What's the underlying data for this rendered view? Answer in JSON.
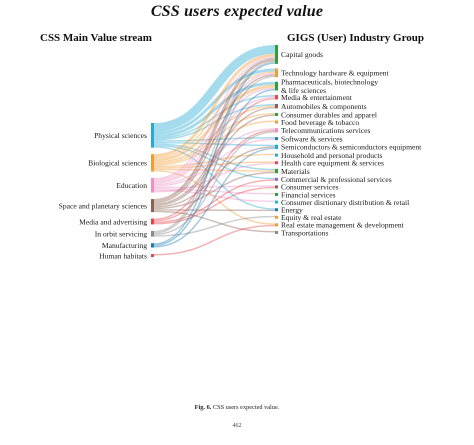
{
  "title": "CSS users expected value",
  "left_header": "CSS Main Value stream",
  "right_header": "GIGS (User) Industry Group",
  "caption": {
    "label": "Fig. 6.",
    "text": "CSS users expected value."
  },
  "page_number": "462",
  "chart_data": {
    "type": "sankey",
    "title": "CSS users expected value",
    "sources": [
      {
        "name": "Physical sciences",
        "color": "#27a9d3"
      },
      {
        "name": "Biological sciences",
        "color": "#f39c34"
      },
      {
        "name": "Education",
        "color": "#ef8fc4"
      },
      {
        "name": "Space and planetary sciences",
        "color": "#8c6253"
      },
      {
        "name": "Media and advertising",
        "color": "#e8424a"
      },
      {
        "name": "In orbit servicing",
        "color": "#8b8b8b"
      },
      {
        "name": "Manufacturing",
        "color": "#1f7bb4"
      },
      {
        "name": "Human habitats",
        "color": "#e8424a"
      }
    ],
    "targets": [
      {
        "name": "Capital goods",
        "color": "#2e9f3b",
        "label_lines": [
          "Capital goods"
        ]
      },
      {
        "name": "Technology hardware & equipment",
        "color": "#f39c34",
        "label_lines": [
          "Technology hardware & equipment"
        ]
      },
      {
        "name": "Pharmaceuticals, biotechnology & life sciences",
        "color": "#2e9f3b",
        "label_lines": [
          "Pharmaceuticals, biotechnology",
          "& life sciences"
        ]
      },
      {
        "name": "Media & entertainment",
        "color": "#e8424a",
        "label_lines": [
          "Media & entertainment"
        ]
      },
      {
        "name": "Automobiles & components",
        "color": "#8c6253",
        "label_lines": [
          "Automobiles & components"
        ]
      },
      {
        "name": "Consumer durables and apparel",
        "color": "#2e9f3b",
        "label_lines": [
          "Consumer durables and apparel"
        ]
      },
      {
        "name": "Food beverage & tobacco",
        "color": "#f39c34",
        "label_lines": [
          "Food beverage & tobacco"
        ]
      },
      {
        "name": "Telecommunications services",
        "color": "#ef8fc4",
        "label_lines": [
          "Telecommunications services"
        ]
      },
      {
        "name": "Software & services",
        "color": "#1f7bb4",
        "label_lines": [
          "Software & services"
        ]
      },
      {
        "name": "Semiconductors & semiconductors equipment",
        "color": "#27a9d3",
        "label_lines": [
          "Semiconductors & semiconductors equipment"
        ]
      },
      {
        "name": "Household and personal products",
        "color": "#27a9d3",
        "label_lines": [
          "Household and personal products"
        ]
      },
      {
        "name": "Health care equipment & services",
        "color": "#e8424a",
        "label_lines": [
          "Health care equipment & services"
        ]
      },
      {
        "name": "Materials",
        "color": "#2e9f3b",
        "label_lines": [
          "Materials"
        ]
      },
      {
        "name": "Commercial & professional services",
        "color": "#9467bd",
        "label_lines": [
          "Commercial & professional services"
        ]
      },
      {
        "name": "Consumer services",
        "color": "#8c6253",
        "label_lines": [
          "Consumer services"
        ]
      },
      {
        "name": "Financial services",
        "color": "#2e9f3b",
        "label_lines": [
          "Financial services"
        ]
      },
      {
        "name": "Consumer disrtionary distribution & retail",
        "color": "#17becf",
        "label_lines": [
          "Consumer disrtionary distribution & retail"
        ]
      },
      {
        "name": "Energy",
        "color": "#1f7bb4",
        "label_lines": [
          "Energy"
        ]
      },
      {
        "name": "Equity & real estate",
        "color": "#f39c34",
        "label_lines": [
          "Equity & real estate"
        ]
      },
      {
        "name": "Real estate management & development",
        "color": "#f39c34",
        "label_lines": [
          "Real estate management & development"
        ]
      },
      {
        "name": "Transportations",
        "color": "#8b8b8b",
        "label_lines": [
          "Transportations"
        ]
      }
    ],
    "links": [
      [
        "Physical sciences",
        "Capital goods",
        6
      ],
      [
        "Physical sciences",
        "Technology hardware & equipment",
        2
      ],
      [
        "Physical sciences",
        "Pharmaceuticals, biotechnology & life sciences",
        2
      ],
      [
        "Physical sciences",
        "Media & entertainment",
        1
      ],
      [
        "Physical sciences",
        "Automobiles & components",
        1
      ],
      [
        "Physical sciences",
        "Software & services",
        1
      ],
      [
        "Physical sciences",
        "Semiconductors & semiconductors equipment",
        1
      ],
      [
        "Physical sciences",
        "Materials",
        1
      ],
      [
        "Physical sciences",
        "Commercial & professional services",
        1
      ],
      [
        "Physical sciences",
        "Energy",
        1
      ],
      [
        "Biological sciences",
        "Capital goods",
        2
      ],
      [
        "Biological sciences",
        "Technology hardware & equipment",
        1
      ],
      [
        "Biological sciences",
        "Pharmaceuticals, biotechnology & life sciences",
        2
      ],
      [
        "Biological sciences",
        "Automobiles & components",
        1
      ],
      [
        "Biological sciences",
        "Consumer durables and apparel",
        1
      ],
      [
        "Biological sciences",
        "Food beverage & tobacco",
        1
      ],
      [
        "Biological sciences",
        "Household and personal products",
        1
      ],
      [
        "Biological sciences",
        "Health care equipment & services",
        1
      ],
      [
        "Biological sciences",
        "Materials",
        1
      ],
      [
        "Biological sciences",
        "Real estate management & development",
        1
      ],
      [
        "Education",
        "Capital goods",
        1
      ],
      [
        "Education",
        "Technology hardware & equipment",
        1
      ],
      [
        "Education",
        "Pharmaceuticals, biotechnology & life sciences",
        1
      ],
      [
        "Education",
        "Media & entertainment",
        1
      ],
      [
        "Education",
        "Telecommunications services",
        1
      ],
      [
        "Education",
        "Software & services",
        1
      ],
      [
        "Education",
        "Consumer services",
        1
      ],
      [
        "Education",
        "Financial services",
        1
      ],
      [
        "Education",
        "Consumer disrtionary distribution & retail",
        1
      ],
      [
        "Education",
        "Health care equipment & services",
        1
      ],
      [
        "Space and planetary sciences",
        "Capital goods",
        2
      ],
      [
        "Space and planetary sciences",
        "Technology hardware & equipment",
        1
      ],
      [
        "Space and planetary sciences",
        "Automobiles & components",
        1
      ],
      [
        "Space and planetary sciences",
        "Consumer durables and apparel",
        1
      ],
      [
        "Space and planetary sciences",
        "Semiconductors & semiconductors equipment",
        1
      ],
      [
        "Space and planetary sciences",
        "Materials",
        1
      ],
      [
        "Space and planetary sciences",
        "Energy",
        1
      ],
      [
        "Space and planetary sciences",
        "Transportations",
        1
      ],
      [
        "Media and advertising",
        "Media & entertainment",
        1
      ],
      [
        "Media and advertising",
        "Telecommunications services",
        1
      ],
      [
        "Media and advertising",
        "Commercial & professional services",
        1
      ],
      [
        "Media and advertising",
        "Consumer services",
        1
      ],
      [
        "In orbit servicing",
        "Capital goods",
        1
      ],
      [
        "In orbit servicing",
        "Technology hardware & equipment",
        1
      ],
      [
        "In orbit servicing",
        "Telecommunications services",
        1
      ],
      [
        "In orbit servicing",
        "Equity & real estate",
        1
      ],
      [
        "Manufacturing",
        "Capital goods",
        1
      ],
      [
        "Manufacturing",
        "Pharmaceuticals, biotechnology & life sciences",
        1
      ],
      [
        "Manufacturing",
        "Semiconductors & semiconductors equipment",
        1
      ],
      [
        "Human habitats",
        "Real estate management & development",
        1
      ]
    ]
  }
}
